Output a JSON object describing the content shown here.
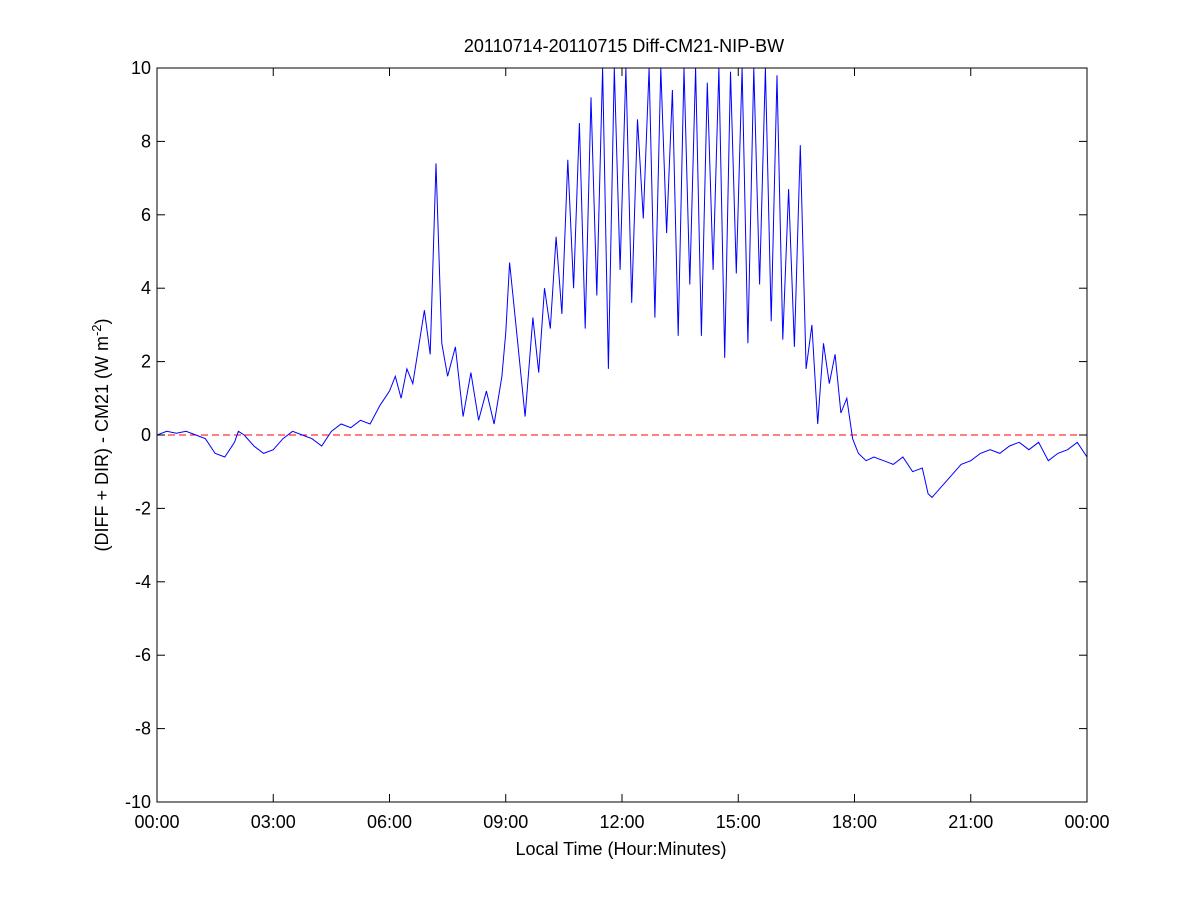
{
  "chart_data": {
    "type": "line",
    "title": "20110714-20110715 Diff-CM21-NIP-BW",
    "xlabel": "Local Time (Hour:Minutes)",
    "ylabel_main": "(DIFF + DIR) - CM21 (W m",
    "ylabel_sup": "-2",
    "ylabel_close": ")",
    "xlim_hours": [
      0,
      24
    ],
    "ylim": [
      -10,
      10
    ],
    "xticks": [
      {
        "hour": 0,
        "label": "00:00"
      },
      {
        "hour": 3,
        "label": "03:00"
      },
      {
        "hour": 6,
        "label": "06:00"
      },
      {
        "hour": 9,
        "label": "09:00"
      },
      {
        "hour": 12,
        "label": "12:00"
      },
      {
        "hour": 15,
        "label": "15:00"
      },
      {
        "hour": 18,
        "label": "18:00"
      },
      {
        "hour": 21,
        "label": "21:00"
      },
      {
        "hour": 24,
        "label": "00:00"
      }
    ],
    "yticks": [
      {
        "value": 10,
        "label": "10"
      },
      {
        "value": 8,
        "label": "8"
      },
      {
        "value": 6,
        "label": "6"
      },
      {
        "value": 4,
        "label": "4"
      },
      {
        "value": 2,
        "label": "2"
      },
      {
        "value": 0,
        "label": "0"
      },
      {
        "value": -2,
        "label": "-2"
      },
      {
        "value": -4,
        "label": "-4"
      },
      {
        "value": -6,
        "label": "-6"
      },
      {
        "value": -8,
        "label": "-8"
      },
      {
        "value": -10,
        "label": "-10"
      }
    ],
    "grid": false,
    "reference_line": {
      "y": 0,
      "color": "#ff0000",
      "style": "dashed"
    },
    "series": [
      {
        "color": "#0000ff",
        "x_hours": [
          0.0,
          0.25,
          0.5,
          0.75,
          1.0,
          1.25,
          1.5,
          1.75,
          2.0,
          2.1,
          2.25,
          2.5,
          2.75,
          3.0,
          3.25,
          3.5,
          3.75,
          4.0,
          4.25,
          4.5,
          4.75,
          5.0,
          5.25,
          5.5,
          5.75,
          6.0,
          6.15,
          6.3,
          6.45,
          6.6,
          6.75,
          6.9,
          7.05,
          7.2,
          7.35,
          7.5,
          7.7,
          7.9,
          8.1,
          8.3,
          8.5,
          8.7,
          8.9,
          9.0,
          9.1,
          9.3,
          9.5,
          9.7,
          9.85,
          10.0,
          10.15,
          10.3,
          10.45,
          10.6,
          10.75,
          10.9,
          11.05,
          11.2,
          11.35,
          11.5,
          11.65,
          11.8,
          11.95,
          12.1,
          12.25,
          12.4,
          12.55,
          12.7,
          12.85,
          13.0,
          13.15,
          13.3,
          13.45,
          13.6,
          13.75,
          13.9,
          14.05,
          14.2,
          14.35,
          14.5,
          14.65,
          14.8,
          14.95,
          15.1,
          15.25,
          15.4,
          15.55,
          15.7,
          15.85,
          16.0,
          16.15,
          16.3,
          16.45,
          16.6,
          16.75,
          16.9,
          17.05,
          17.2,
          17.35,
          17.5,
          17.65,
          17.8,
          17.95,
          18.1,
          18.3,
          18.5,
          18.75,
          19.0,
          19.25,
          19.5,
          19.75,
          19.9,
          20.0,
          20.25,
          20.5,
          20.75,
          21.0,
          21.25,
          21.5,
          21.75,
          22.0,
          22.25,
          22.5,
          22.75,
          23.0,
          23.25,
          23.5,
          23.75,
          24.0
        ],
        "y": [
          0.0,
          0.1,
          0.05,
          0.1,
          0.0,
          -0.1,
          -0.5,
          -0.6,
          -0.2,
          0.1,
          0.0,
          -0.3,
          -0.5,
          -0.4,
          -0.1,
          0.1,
          0.0,
          -0.1,
          -0.3,
          0.1,
          0.3,
          0.2,
          0.4,
          0.3,
          0.8,
          1.2,
          1.6,
          1.0,
          1.8,
          1.4,
          2.4,
          3.4,
          2.2,
          7.4,
          2.5,
          1.6,
          2.4,
          0.5,
          1.7,
          0.4,
          1.2,
          0.3,
          1.6,
          2.8,
          4.7,
          2.6,
          0.5,
          3.2,
          1.7,
          4.0,
          2.9,
          5.4,
          3.3,
          7.5,
          4.0,
          8.5,
          2.9,
          9.2,
          3.8,
          10.0,
          1.8,
          10.0,
          4.5,
          10.0,
          3.6,
          8.6,
          5.9,
          10.0,
          3.2,
          10.0,
          5.5,
          9.4,
          2.7,
          10.0,
          4.1,
          10.0,
          2.7,
          9.6,
          4.5,
          10.0,
          2.1,
          9.9,
          4.4,
          10.0,
          2.5,
          10.0,
          4.1,
          10.0,
          3.1,
          9.8,
          2.6,
          6.7,
          2.4,
          7.9,
          1.8,
          3.0,
          0.3,
          2.5,
          1.4,
          2.2,
          0.6,
          1.0,
          -0.1,
          -0.5,
          -0.7,
          -0.6,
          -0.7,
          -0.8,
          -0.6,
          -1.0,
          -0.9,
          -1.6,
          -1.7,
          -1.4,
          -1.1,
          -0.8,
          -0.7,
          -0.5,
          -0.4,
          -0.5,
          -0.3,
          -0.2,
          -0.4,
          -0.2,
          -0.7,
          -0.5,
          -0.4,
          -0.2,
          -0.6
        ]
      }
    ]
  }
}
